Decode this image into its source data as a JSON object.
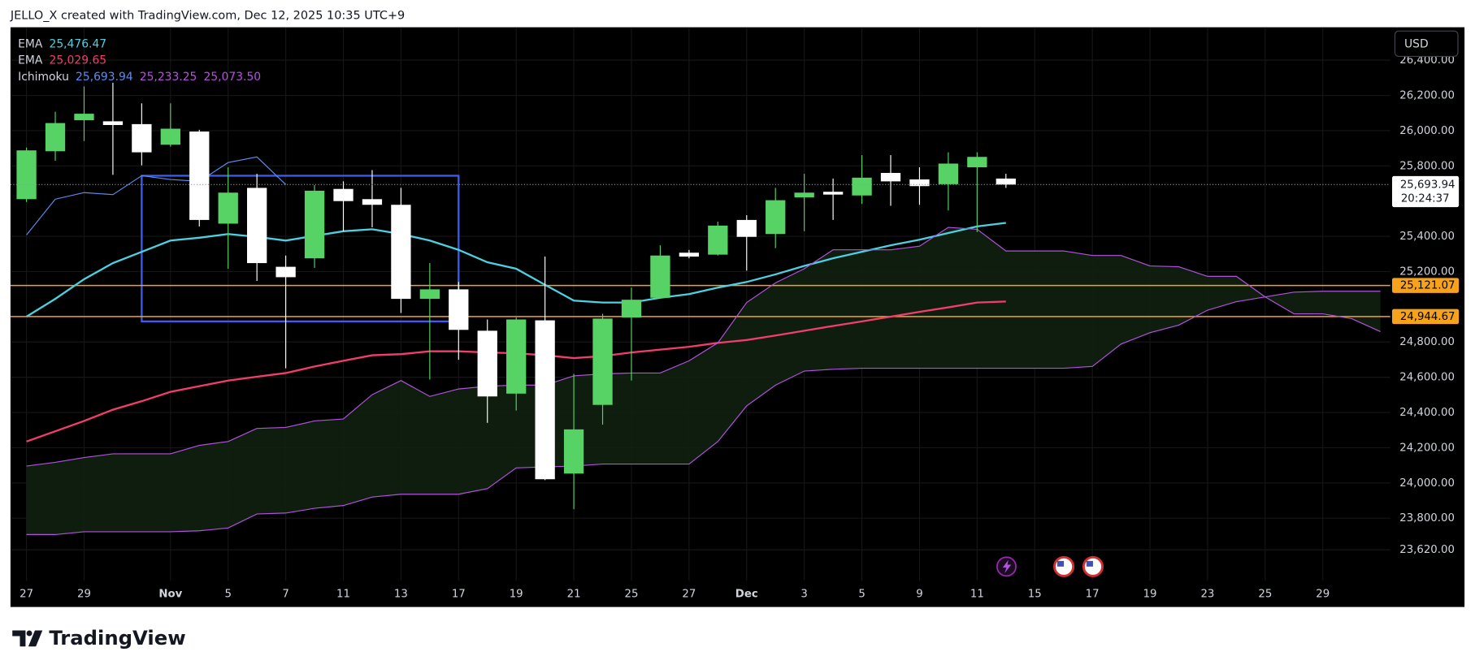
{
  "header": "JELLO_X created with TradingView.com, Dec 12, 2025 10:35 UTC+9",
  "brand": "TradingView",
  "chart_data": {
    "type": "candlestick",
    "currency": "USD",
    "grid": true,
    "up_color": "#56d364",
    "down_color": "#ffffff",
    "xlim": [
      -0.555,
      47.34
    ],
    "ylim": [
      23445,
      26587
    ],
    "yticks": [
      {
        "value": 26400,
        "label": "26,400.00"
      },
      {
        "value": 26200,
        "label": "26,200.00"
      },
      {
        "value": 26000,
        "label": "26,000.00"
      },
      {
        "value": 25800,
        "label": "25,800.00"
      },
      {
        "value": 25400,
        "label": "25,400.00"
      },
      {
        "value": 25200,
        "label": "25,200.00"
      },
      {
        "value": 24800,
        "label": "24,800.00"
      },
      {
        "value": 24600,
        "label": "24,600.00"
      },
      {
        "value": 24400,
        "label": "24,400.00"
      },
      {
        "value": 24200,
        "label": "24,200.00"
      },
      {
        "value": 24000,
        "label": "24,000.00"
      },
      {
        "value": 23800,
        "label": "23,800.00"
      },
      {
        "value": 23620,
        "label": "23,620.00"
      }
    ],
    "categories": [
      "27",
      null,
      "29",
      null,
      null,
      "Nov",
      null,
      "5",
      null,
      "7",
      null,
      "11",
      null,
      "13",
      null,
      "17",
      null,
      "19",
      null,
      "21",
      null,
      "25",
      null,
      "27",
      null,
      "Dec",
      null,
      "3",
      null,
      "5",
      null,
      "9",
      null,
      "11",
      null,
      "15",
      null,
      "17",
      null,
      "19",
      null,
      "23",
      null,
      "25",
      null,
      "29",
      null,
      null
    ],
    "open": [
      25611,
      25883,
      26059,
      26053,
      26037,
      25920,
      25995,
      25472,
      25675,
      25227,
      25275,
      25669,
      25611,
      25579,
      25045,
      25099,
      24864,
      24507,
      24923,
      24053,
      24443,
      24939,
      25051,
      25307,
      25296,
      25493,
      25413,
      25621,
      25653,
      25632,
      25760,
      25723,
      25696,
      25792,
      25728,
      null,
      null,
      null,
      null,
      null,
      null,
      null,
      null,
      null,
      null,
      null,
      null,
      null
    ],
    "high": [
      25904,
      26107,
      26251,
      26272,
      26155,
      26155,
      26005,
      25792,
      25755,
      25291,
      25691,
      25712,
      25776,
      25675,
      25248,
      25141,
      24928,
      24939,
      25285,
      24619,
      24960,
      25109,
      25349,
      25323,
      25483,
      25520,
      25675,
      25755,
      25728,
      25861,
      25861,
      25792,
      25877,
      25877,
      25755,
      null,
      null,
      null,
      null,
      null,
      null,
      null,
      null,
      null,
      null,
      null,
      null,
      null
    ],
    "low": [
      25595,
      25829,
      25941,
      25749,
      25803,
      25909,
      25456,
      25216,
      25147,
      24651,
      25221,
      25429,
      25451,
      24965,
      24587,
      24699,
      24341,
      24411,
      24016,
      23851,
      24331,
      24581,
      25045,
      25275,
      25291,
      25205,
      25333,
      25429,
      25493,
      25584,
      25573,
      25579,
      25547,
      25424,
      25675,
      null,
      null,
      null,
      null,
      null,
      null,
      null,
      null,
      null,
      null,
      null,
      null,
      null
    ],
    "close": [
      25888,
      26043,
      26096,
      26032,
      25877,
      26011,
      25493,
      25648,
      25248,
      25168,
      25659,
      25600,
      25579,
      25045,
      25099,
      24869,
      24491,
      24928,
      24021,
      24304,
      24933,
      25040,
      25291,
      25285,
      25461,
      25397,
      25605,
      25648,
      25637,
      25733,
      25712,
      25685,
      25813,
      25851,
      25693.94,
      null,
      null,
      null,
      null,
      null,
      null,
      null,
      null,
      null,
      null,
      null,
      null,
      null
    ],
    "indicators": [
      {
        "name": "EMA",
        "lines": [
          {
            "color": "#4dd0e1",
            "readout": "25,476.47",
            "values": [
              24944,
              25045,
              25157,
              25248,
              25312,
              25376,
              25392,
              25413,
              25397,
              25376,
              25403,
              25429,
              25440,
              25413,
              25376,
              25323,
              25253,
              25216,
              25125,
              25035,
              25024,
              25024,
              25051,
              25072,
              25109,
              25141,
              25184,
              25232,
              25275,
              25312,
              25349,
              25381,
              25419,
              25456,
              25476.47,
              null,
              null,
              null,
              null,
              null,
              null,
              null,
              null,
              null,
              null,
              null,
              null,
              null
            ]
          }
        ]
      },
      {
        "name": "EMA",
        "lines": [
          {
            "color": "#f23d6d",
            "readout": "25,029.65",
            "values": [
              24235,
              24293,
              24352,
              24416,
              24464,
              24517,
              24549,
              24581,
              24603,
              24624,
              24661,
              24693,
              24725,
              24731,
              24747,
              24747,
              24741,
              24736,
              24725,
              24709,
              24720,
              24741,
              24757,
              24773,
              24795,
              24811,
              24837,
              24864,
              24891,
              24917,
              24944,
              24971,
              24997,
              25024,
              25029.65,
              null,
              null,
              null,
              null,
              null,
              null,
              null,
              null,
              null,
              null,
              null,
              null,
              null
            ]
          }
        ]
      },
      {
        "name": "Ichimoku",
        "cloud_color": "#10200f",
        "lines": [
          {
            "color": "#5b8def",
            "readout": "25,693.94",
            "values": [
              25408,
              25611,
              25648,
              25637,
              25744,
              25723,
              25712,
              25819,
              25851,
              25693.94,
              null,
              null,
              null,
              null,
              null,
              null,
              null,
              null,
              null,
              null,
              null,
              null,
              null,
              null,
              null,
              null,
              null,
              null,
              null,
              null,
              null,
              null,
              null,
              null,
              null,
              null,
              null,
              null,
              null,
              null,
              null,
              null,
              null,
              null,
              null,
              null,
              null,
              null
            ]
          },
          {
            "color": "#b452e0",
            "readout": "25,233.25",
            "values": [
              24096,
              24117,
              24144,
              24165,
              24165,
              24165,
              24213,
              24235,
              24309,
              24315,
              24352,
              24363,
              24501,
              24581,
              24491,
              24533,
              24549,
              24555,
              24555,
              24608,
              24619,
              24624,
              24624,
              24693,
              24795,
              25024,
              25136,
              25216,
              25323,
              25323,
              25323,
              25344,
              25451,
              25440,
              25317,
              25317,
              25317,
              25291,
              25291,
              25232,
              25227,
              25173,
              25173,
              25056,
              24960,
              24960,
              24933,
              24859
            ]
          },
          {
            "color": "#b452e0",
            "readout": "25,073.50",
            "values": [
              23707,
              23707,
              23723,
              23723,
              23723,
              23723,
              23728,
              23744,
              23824,
              23829,
              23856,
              23872,
              23920,
              23936,
              23936,
              23936,
              23968,
              24085,
              24091,
              24096,
              24107,
              24107,
              24107,
              24107,
              24235,
              24437,
              24555,
              24635,
              24645,
              24651,
              24651,
              24651,
              24651,
              24651,
              24651,
              24651,
              24651,
              24661,
              24789,
              24853,
              24896,
              24981,
              25029,
              25056,
              25083,
              25088,
              25088,
              25088
            ]
          }
        ]
      }
    ],
    "hlines": [
      {
        "value": 25121.07,
        "label": "25,121.07",
        "color": "#f7a21b"
      },
      {
        "value": 24944.67,
        "label": "24,944.67",
        "color": "#f7a21b"
      }
    ],
    "last_price": {
      "value": 25693.94,
      "label": "25,693.94",
      "countdown": "20:24:37"
    },
    "rectangle": {
      "x": [
        4,
        15
      ],
      "y": [
        25744,
        24917
      ],
      "color": "#3d5af1"
    }
  }
}
